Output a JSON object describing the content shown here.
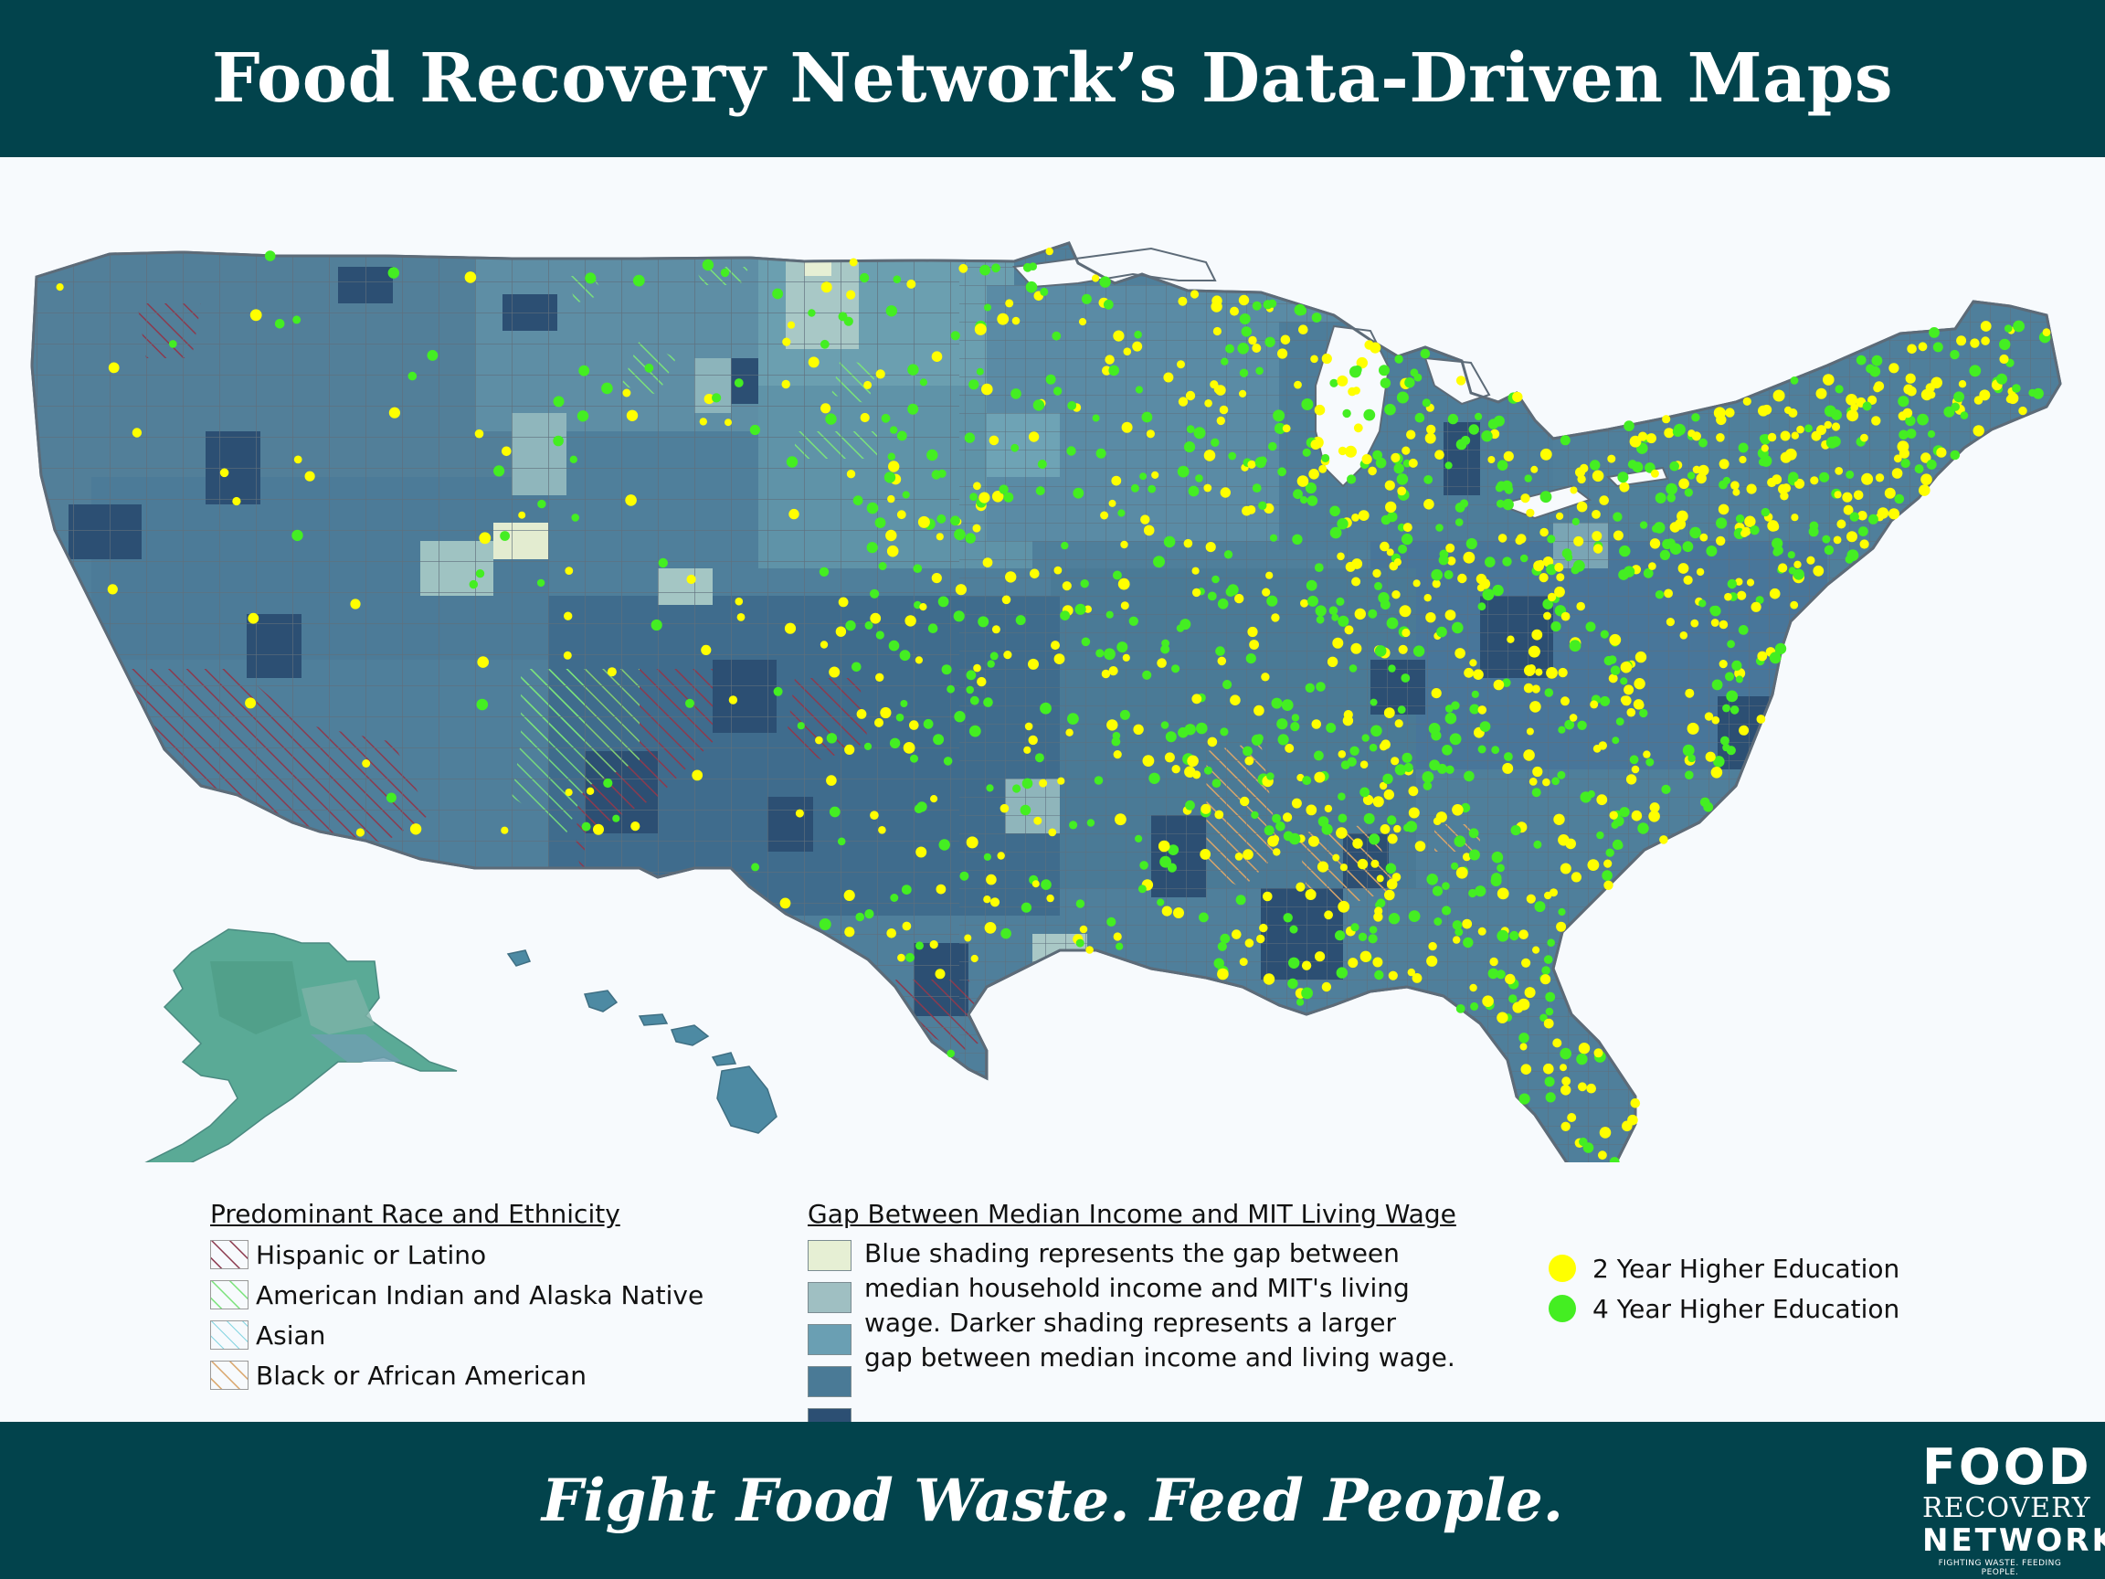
{
  "header": {
    "title": "Food Recovery Network’s Data-Driven Maps"
  },
  "legend_race": {
    "title": "Predominant Race and Ethnicity",
    "items": [
      {
        "label": "Hispanic or Latino",
        "color": "#8c3a4e"
      },
      {
        "label": "American Indian and Alaska Native",
        "color": "#6ad06a"
      },
      {
        "label": "Asian",
        "color": "#7fd3e0"
      },
      {
        "label": "Black or African American",
        "color": "#d9a56a"
      }
    ]
  },
  "legend_gap": {
    "title": "Gap Between Median Income and MIT Living Wage",
    "lines": [
      "Blue shading represents the gap between",
      "median household income and MIT's living",
      "wage. Darker shading represents a larger",
      "gap between median income and living wage."
    ],
    "colors": [
      "#e6efd4",
      "#9fbfc2",
      "#6a9fb3",
      "#4a7a96",
      "#2c4f73"
    ]
  },
  "legend_schools": {
    "items": [
      {
        "label": "2 Year Higher Education",
        "color": "#ffff00"
      },
      {
        "label": "4 Year Higher Education",
        "color": "#44ee22"
      }
    ]
  },
  "footer": {
    "tagline": "Fight Food Waste. Feed People.",
    "logo_food": "FOOD",
    "logo_recovery": "RECOVERY",
    "logo_network": "NETWORK",
    "logo_sub": "FIGHTING WASTE. FEEDING PEOPLE."
  }
}
